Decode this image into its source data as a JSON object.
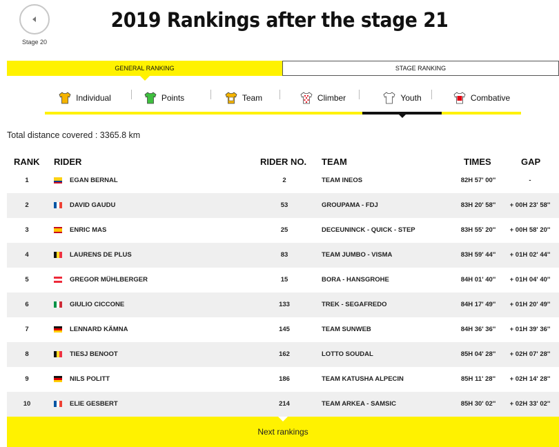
{
  "header": {
    "title": "2019 Rankings after the stage 21",
    "back_label": "Stage 20"
  },
  "ranking_toggle": {
    "general": "GENERAL RANKING",
    "stage": "STAGE RANKING"
  },
  "tabs": [
    {
      "label": "Individual",
      "jersey_color": "#f5b400",
      "icon": "yellow-jersey-icon"
    },
    {
      "label": "Points",
      "jersey_color": "#3fbf3f",
      "icon": "green-jersey-icon"
    },
    {
      "label": "Team",
      "jersey_color": "#f5b400",
      "icon": "team-jersey-icon"
    },
    {
      "label": "Climber",
      "jersey_color": "#ffffff",
      "icon": "polka-dot-jersey-icon"
    },
    {
      "label": "Youth",
      "jersey_color": "#ffffff",
      "icon": "white-jersey-icon"
    },
    {
      "label": "Combative",
      "jersey_color": "#e30613",
      "icon": "red-number-jersey-icon"
    }
  ],
  "active_tab": "Youth",
  "distance": "Total distance covered : 3365.8 km",
  "table": {
    "headers": {
      "rank": "RANK",
      "rider": "RIDER",
      "rider_no": "RIDER NO.",
      "team": "TEAM",
      "times": "TIMES",
      "gap": "GAP"
    },
    "rows": [
      {
        "rank": "1",
        "flag": "colombia",
        "rider": "EGAN BERNAL",
        "no": "2",
        "team": "TEAM INEOS",
        "time": "82H 57' 00''",
        "gap": "-"
      },
      {
        "rank": "2",
        "flag": "france",
        "rider": "DAVID GAUDU",
        "no": "53",
        "team": "GROUPAMA - FDJ",
        "time": "83H 20' 58''",
        "gap": "+ 00H 23' 58''"
      },
      {
        "rank": "3",
        "flag": "spain",
        "rider": "ENRIC MAS",
        "no": "25",
        "team": "DECEUNINCK - QUICK - STEP",
        "time": "83H 55' 20''",
        "gap": "+ 00H 58' 20''"
      },
      {
        "rank": "4",
        "flag": "belgium",
        "rider": "LAURENS DE PLUS",
        "no": "83",
        "team": "TEAM JUMBO - VISMA",
        "time": "83H 59' 44''",
        "gap": "+ 01H 02' 44''"
      },
      {
        "rank": "5",
        "flag": "austria",
        "rider": "GREGOR MÜHLBERGER",
        "no": "15",
        "team": "BORA - HANSGROHE",
        "time": "84H 01' 40''",
        "gap": "+ 01H 04' 40''"
      },
      {
        "rank": "6",
        "flag": "italy",
        "rider": "GIULIO CICCONE",
        "no": "133",
        "team": "TREK - SEGAFREDO",
        "time": "84H 17' 49''",
        "gap": "+ 01H 20' 49''"
      },
      {
        "rank": "7",
        "flag": "germany",
        "rider": "LENNARD KÄMNA",
        "no": "145",
        "team": "TEAM SUNWEB",
        "time": "84H 36' 36''",
        "gap": "+ 01H 39' 36''"
      },
      {
        "rank": "8",
        "flag": "belgium",
        "rider": "TIESJ BENOOT",
        "no": "162",
        "team": "LOTTO SOUDAL",
        "time": "85H 04' 28''",
        "gap": "+ 02H 07' 28''"
      },
      {
        "rank": "9",
        "flag": "germany",
        "rider": "NILS POLITT",
        "no": "186",
        "team": "TEAM KATUSHA ALPECIN",
        "time": "85H 11' 28''",
        "gap": "+ 02H 14' 28''"
      },
      {
        "rank": "10",
        "flag": "france",
        "rider": "ELIE GESBERT",
        "no": "214",
        "team": "TEAM ARKEA - SAMSIC",
        "time": "85H 30' 02''",
        "gap": "+ 02H 33' 02''"
      }
    ]
  },
  "footer": {
    "next_label": "Next rankings"
  },
  "colors": {
    "accent_yellow": "#fff200",
    "row_alt": "#efefef"
  }
}
